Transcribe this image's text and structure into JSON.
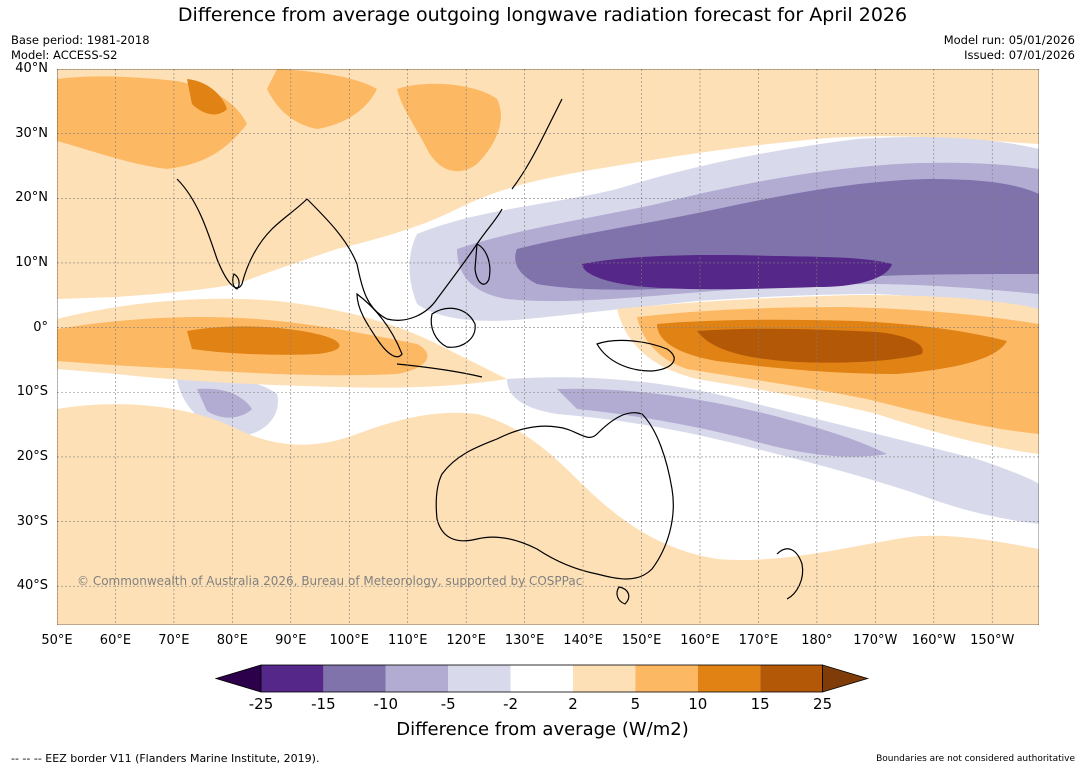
{
  "title": "Difference from average outgoing longwave radiation forecast for April 2026",
  "meta_left": {
    "base_period": "Base period: 1981-2018",
    "model": "Model: ACCESS-S2"
  },
  "meta_right": {
    "model_run": "Model run: 05/01/2026",
    "issued": "Issued: 07/01/2026"
  },
  "copyright": "© Commonwealth of Australia 2026, Bureau of Meteorology, supported by COSPPac",
  "map": {
    "lon_range": [
      50,
      218
    ],
    "lat_range": [
      -46,
      40
    ],
    "lat_labels": [
      {
        "value": 40,
        "label": "40°N"
      },
      {
        "value": 30,
        "label": "30°N"
      },
      {
        "value": 20,
        "label": "20°N"
      },
      {
        "value": 10,
        "label": "10°N"
      },
      {
        "value": 0,
        "label": "0°"
      },
      {
        "value": -10,
        "label": "10°S"
      },
      {
        "value": -20,
        "label": "20°S"
      },
      {
        "value": -30,
        "label": "30°S"
      },
      {
        "value": -40,
        "label": "40°S"
      }
    ],
    "lon_labels": [
      {
        "value": 50,
        "label": "50°E"
      },
      {
        "value": 60,
        "label": "60°E"
      },
      {
        "value": 70,
        "label": "70°E"
      },
      {
        "value": 80,
        "label": "80°E"
      },
      {
        "value": 90,
        "label": "90°E"
      },
      {
        "value": 100,
        "label": "100°E"
      },
      {
        "value": 110,
        "label": "110°E"
      },
      {
        "value": 120,
        "label": "120°E"
      },
      {
        "value": 130,
        "label": "130°E"
      },
      {
        "value": 140,
        "label": "140°E"
      },
      {
        "value": 150,
        "label": "150°E"
      },
      {
        "value": 160,
        "label": "160°E"
      },
      {
        "value": 170,
        "label": "170°E"
      },
      {
        "value": 180,
        "label": "180°"
      },
      {
        "value": 190,
        "label": "170°W"
      },
      {
        "value": 200,
        "label": "160°W"
      },
      {
        "value": 210,
        "label": "150°W"
      }
    ]
  },
  "colorbar": {
    "ticks": [
      "-25",
      "-15",
      "-10",
      "-5",
      "-2",
      "2",
      "5",
      "10",
      "15",
      "25"
    ],
    "colors": [
      "#2d004b",
      "#542788",
      "#8073ac",
      "#b2abd2",
      "#d8daeb",
      "#ffffff",
      "#fee0b6",
      "#fdb863",
      "#e08214",
      "#b35806",
      "#7f3b08"
    ],
    "label": "Difference from average (W/m2)"
  },
  "footer": {
    "eez": "--  --  -- EEZ border V11 (Flanders Marine Institute, 2019).",
    "disclaimer": "Boundaries are not considered authoritative"
  }
}
